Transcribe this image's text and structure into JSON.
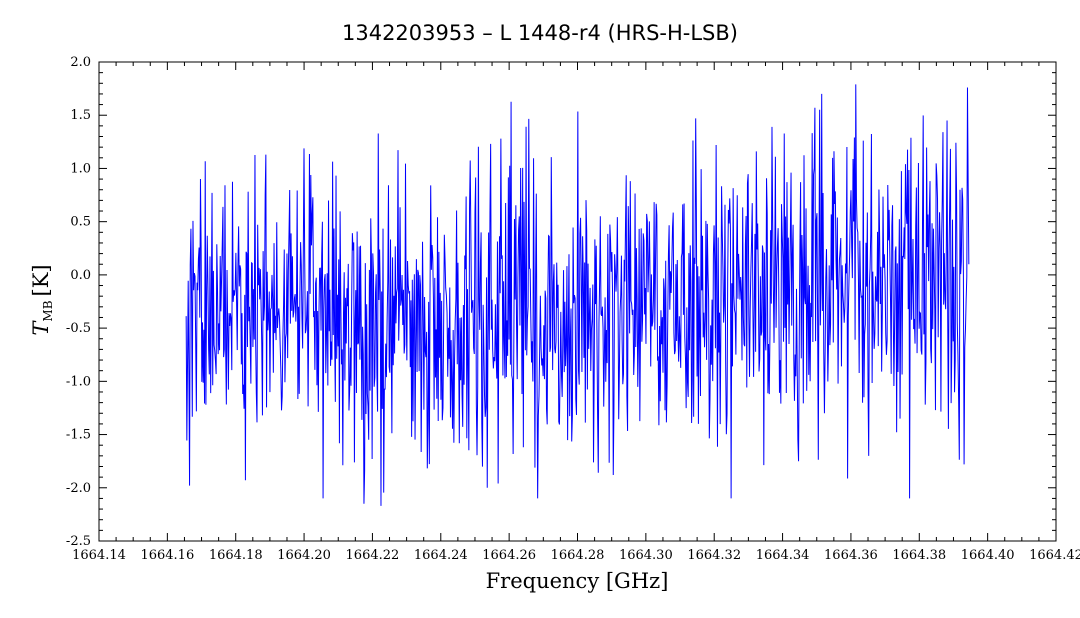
{
  "chart_data": {
    "type": "line",
    "title": "1342203953 – L 1448-r4 (HRS-H-LSB)",
    "xlabel": "Frequency [GHz]",
    "ylabel_main": "T",
    "ylabel_sub": "MB",
    "ylabel_unit": "[K]",
    "xlim": [
      1664.14,
      1664.42
    ],
    "ylim": [
      -2.5,
      2.0
    ],
    "xticks": [
      "1664.14",
      "1664.16",
      "1664.18",
      "1664.20",
      "1664.22",
      "1664.24",
      "1664.26",
      "1664.28",
      "1664.30",
      "1664.32",
      "1664.34",
      "1664.36",
      "1664.38",
      "1664.40",
      "1664.42"
    ],
    "yticks": [
      "2.0",
      "1.5",
      "1.0",
      "0.5",
      "0.0",
      "-0.5",
      "-1.0",
      "-1.5",
      "-2.0",
      "-2.5"
    ],
    "grid": false,
    "series": [
      {
        "color": "#0000ff",
        "x_range": [
          1664.1655,
          1664.3945
        ],
        "profile_x": [
          1664.1655,
          1664.18,
          1664.2,
          1664.22,
          1664.24,
          1664.26,
          1664.28,
          1664.3,
          1664.32,
          1664.34,
          1664.36,
          1664.38,
          1664.3945
        ],
        "profile_mean": [
          -0.3,
          -0.3,
          -0.38,
          -0.45,
          -0.45,
          -0.4,
          -0.4,
          -0.35,
          -0.3,
          -0.2,
          -0.15,
          -0.05,
          -0.1
        ],
        "profile_amplitude": [
          0.55,
          0.55,
          0.6,
          0.7,
          0.7,
          0.7,
          0.65,
          0.65,
          0.65,
          0.7,
          0.75,
          0.75,
          0.75
        ],
        "notable_points": [
          {
            "x": 1664.1665,
            "y": -1.98
          },
          {
            "x": 1664.1889,
            "y": 1.13
          },
          {
            "x": 1664.2175,
            "y": -2.15
          },
          {
            "x": 1664.2225,
            "y": -2.17
          },
          {
            "x": 1664.2535,
            "y": -2.0
          },
          {
            "x": 1664.2575,
            "y": 1.28
          },
          {
            "x": 1664.2905,
            "y": -1.88
          },
          {
            "x": 1664.3145,
            "y": 1.47
          },
          {
            "x": 1664.3495,
            "y": 1.57
          },
          {
            "x": 1664.3615,
            "y": 1.79
          },
          {
            "x": 1664.3652,
            "y": -1.7
          },
          {
            "x": 1664.3882,
            "y": 1.45
          },
          {
            "x": 1664.3932,
            "y": -1.78
          },
          {
            "x": 1664.3942,
            "y": 1.76
          }
        ]
      }
    ]
  }
}
